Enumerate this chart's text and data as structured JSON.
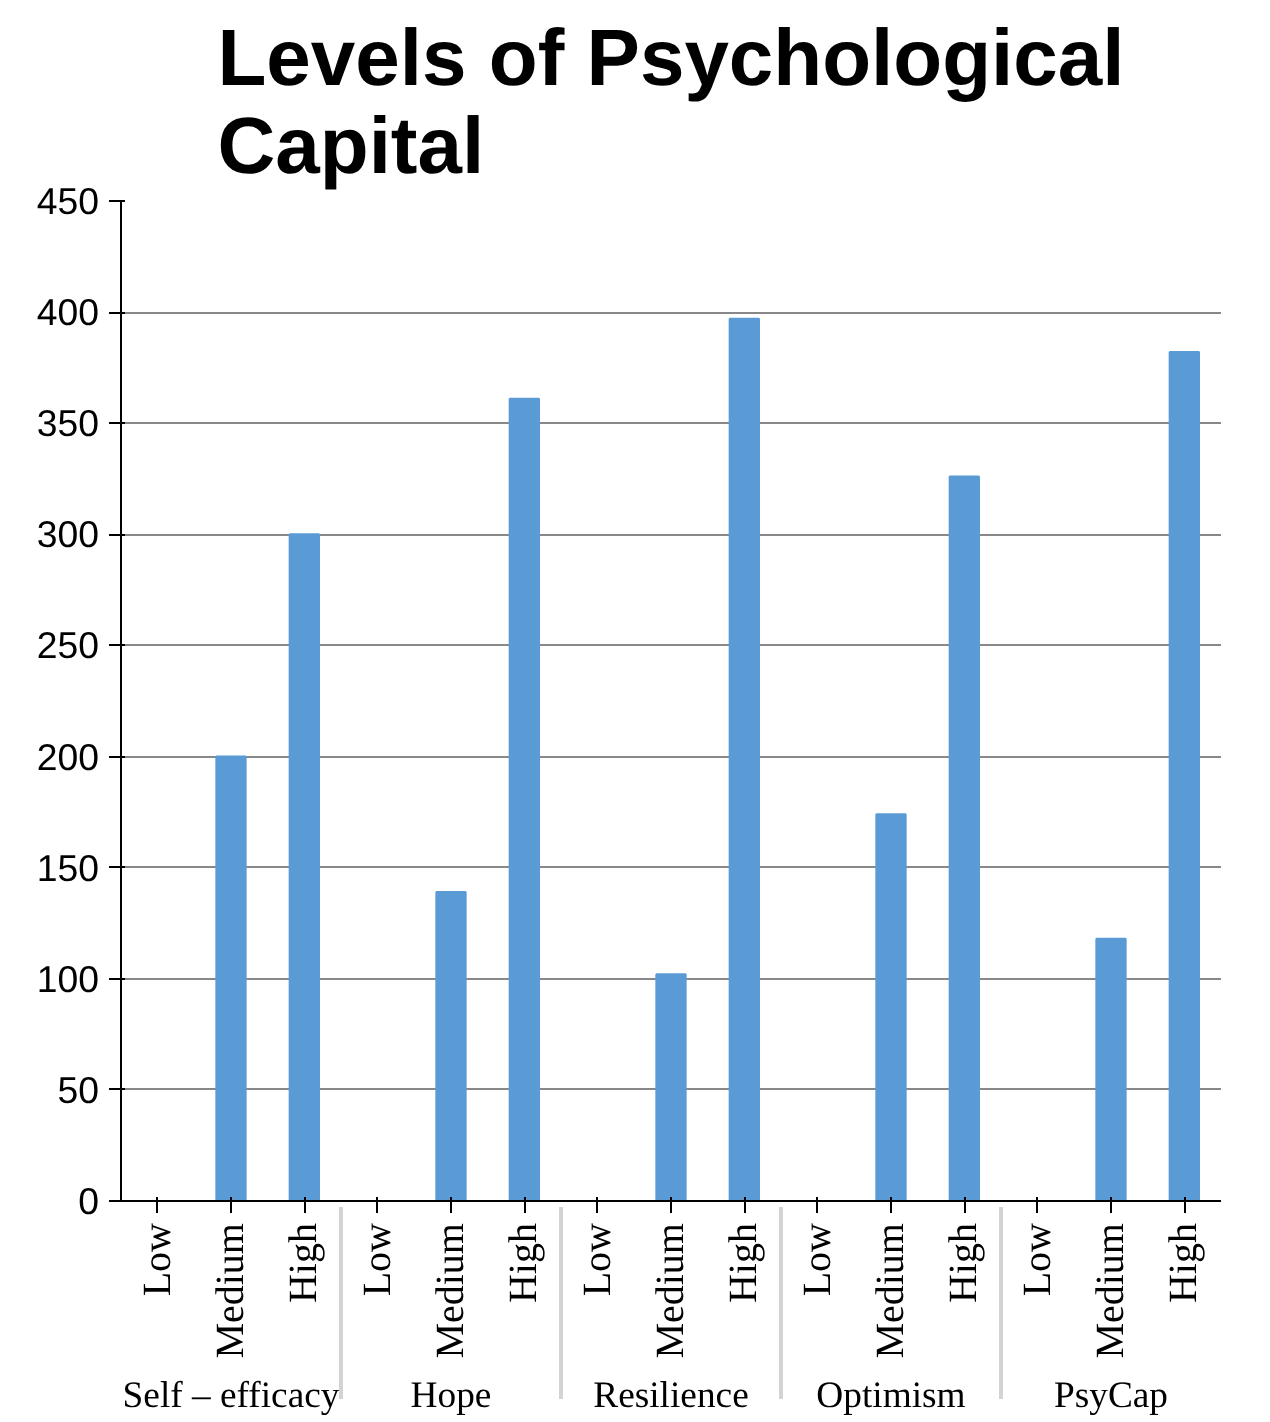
{
  "chart_data": {
    "type": "bar",
    "title": "Levels of Psychological Capital",
    "categories": [
      "Low",
      "Medium",
      "High",
      "Low",
      "Medium",
      "High",
      "Low",
      "Medium",
      "High",
      "Low",
      "Medium",
      "High",
      "Low",
      "Medium",
      "High"
    ],
    "annotations": [
      "Self – efficacy",
      "Hope",
      "Resilience",
      "Optimism",
      "PsyCap"
    ],
    "values": [
      0,
      200,
      300,
      0,
      139,
      361,
      0,
      102,
      397,
      0,
      174,
      326,
      0,
      118,
      382
    ],
    "color": "#5b9bd5",
    "ylim": [
      0,
      450
    ],
    "yticks": [
      0,
      50,
      100,
      150,
      200,
      250,
      300,
      350,
      400,
      450
    ],
    "grid": "y"
  }
}
